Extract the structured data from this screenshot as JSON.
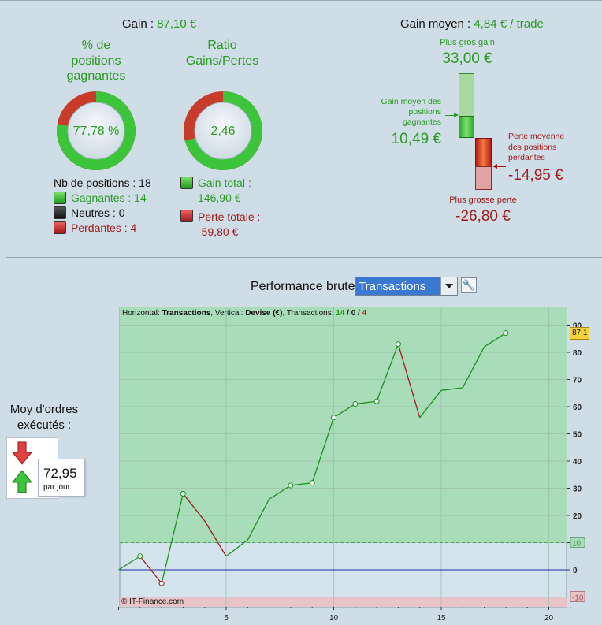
{
  "stats": {
    "gain_label": "Gain : ",
    "gain_value": "87,10 €",
    "win_pct_title": [
      "% de",
      "positions",
      "gagnantes"
    ],
    "win_pct_value": "77,78 %",
    "win_fraction": 0.7778,
    "ratio_title": [
      "Ratio",
      "Gains/Pertes"
    ],
    "ratio_value": "2,46",
    "ratio_fraction": 0.71,
    "positions_label": "Nb de positions : 18",
    "winners_label": "Gagnantes : 14",
    "neutral_label": "Neutres : 0",
    "losers_label": "Perdantes : 4",
    "gain_total_label": "Gain total :",
    "gain_total_value": "146,90 €",
    "loss_total_label": "Perte totale :",
    "loss_total_value": "-59,80 €"
  },
  "avg": {
    "title": "Gain moyen : ",
    "title_value": "4,84 € / trade",
    "max_gain_label": "Plus gros gain",
    "max_gain_value": "33,00 €",
    "avg_win_label": [
      "Gain moyen des",
      "positions",
      "gagnantes"
    ],
    "avg_win_value": "10,49 €",
    "avg_loss_label": [
      "Perte moyenne",
      "des positions",
      "perdantes"
    ],
    "avg_loss_value": "-14,95 €",
    "max_loss_label": "Plus grosse perte",
    "max_loss_value": "-26,80 €"
  },
  "orders": {
    "title": [
      "Moy d'ordres",
      "exécutés :"
    ],
    "value": "72,95",
    "unit": "par jour"
  },
  "performance": {
    "title": "Performance brute",
    "dropdown_value": "Transactions",
    "header_h_label": "Horizontal: ",
    "header_h_value": "Transactions",
    "header_v_label": ", Vertical: ",
    "header_v_value": "Devise (€)",
    "header_t_label": ", Transactions: ",
    "header_wins": "14",
    "header_sep1": " / ",
    "header_neutral": "0",
    "header_sep2": " / ",
    "header_losses": "4",
    "copyright": "© IT-Finance.com",
    "last_value_tag": "87,1"
  },
  "chart_data": {
    "type": "line",
    "xlabel": "",
    "ylabel": "",
    "x": [
      0,
      1,
      2,
      3,
      4,
      5,
      6,
      7,
      8,
      9,
      10,
      11,
      12,
      13,
      14,
      15,
      16,
      17,
      18
    ],
    "y": [
      0,
      5,
      -5,
      28,
      18,
      5,
      11,
      26,
      31,
      32,
      56,
      61,
      62,
      83,
      56,
      66,
      67,
      82,
      87.1
    ],
    "markers_at": [
      1,
      2,
      3,
      8,
      9,
      10,
      11,
      12,
      13,
      18
    ],
    "xlim": [
      0,
      21
    ],
    "ylim": [
      -14,
      93
    ],
    "xticks": [
      5,
      10,
      15,
      20
    ],
    "yticks": [
      0,
      10,
      20,
      30,
      40,
      50,
      60,
      70,
      80,
      90
    ],
    "threshold_lines": [
      10,
      -10
    ],
    "baseline": 0,
    "win_color": "#1f8f1f",
    "loss_color": "#9b1c1c",
    "zero_color": "#1b28a8"
  }
}
